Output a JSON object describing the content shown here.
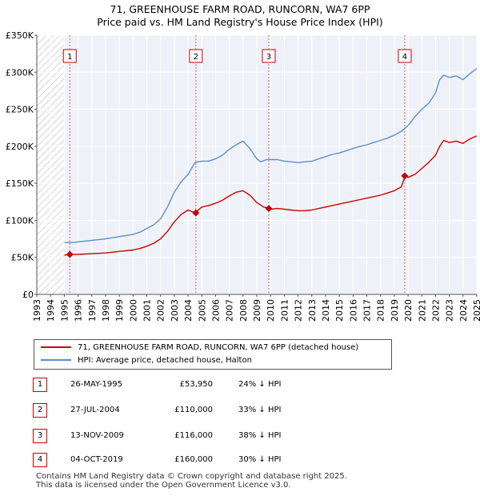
{
  "title": {
    "line1": "71, GREENHOUSE FARM ROAD, RUNCORN, WA7 6PP",
    "line2": "Price paid vs. HM Land Registry's House Price Index (HPI)"
  },
  "colors": {
    "price_paid": "#cc0000",
    "hpi": "#5b8fd0",
    "marker": "#cc0000"
  },
  "legend": {
    "price_paid": "71, GREENHOUSE FARM ROAD, RUNCORN, WA7 6PP (detached house)",
    "hpi": "HPI: Average price, detached house, Halton"
  },
  "sales": [
    {
      "num": "1",
      "date": "26-MAY-1995",
      "price": "£53,950",
      "hpi_diff": "24% ↓ HPI"
    },
    {
      "num": "2",
      "date": "27-JUL-2004",
      "price": "£110,000",
      "hpi_diff": "33% ↓ HPI"
    },
    {
      "num": "3",
      "date": "13-NOV-2009",
      "price": "£116,000",
      "hpi_diff": "38% ↓ HPI"
    },
    {
      "num": "4",
      "date": "04-OCT-2019",
      "price": "£160,000",
      "hpi_diff": "30% ↓ HPI"
    }
  ],
  "footer": {
    "line1": "Contains HM Land Registry data © Crown copyright and database right 2025.",
    "line2": "This data is licensed under the Open Government Licence v3.0."
  },
  "chart_data": {
    "type": "line",
    "xlim": [
      1993,
      2025
    ],
    "ylim": [
      0,
      350000
    ],
    "y_ticks": [
      0,
      50000,
      100000,
      150000,
      200000,
      250000,
      300000,
      350000
    ],
    "y_tick_labels": [
      "£0",
      "£50K",
      "£100K",
      "£150K",
      "£200K",
      "£250K",
      "£300K",
      "£350K"
    ],
    "x_ticks": [
      1993,
      1994,
      1995,
      1996,
      1997,
      1998,
      1999,
      2000,
      2001,
      2002,
      2003,
      2004,
      2005,
      2006,
      2007,
      2008,
      2009,
      2010,
      2011,
      2012,
      2013,
      2014,
      2015,
      2016,
      2017,
      2018,
      2019,
      2020,
      2021,
      2022,
      2023,
      2024,
      2025
    ],
    "hatched_until": 1995.0,
    "series": [
      {
        "name": "HPI: Average price, detached house, Halton",
        "color": "#5b8fd0",
        "x": [
          1995.0,
          1995.5,
          1996,
          1997,
          1998,
          1999,
          2000,
          2000.5,
          2001,
          2001.5,
          2002,
          2002.5,
          2003,
          2003.5,
          2004,
          2004.5,
          2005,
          2005.5,
          2006,
          2006.5,
          2007,
          2007.5,
          2008,
          2008.5,
          2009,
          2009.3,
          2009.7,
          2010,
          2010.5,
          2011,
          2011.5,
          2012,
          2012.5,
          2013,
          2013.5,
          2014,
          2014.5,
          2015,
          2015.5,
          2016,
          2016.5,
          2017,
          2017.5,
          2018,
          2018.5,
          2019,
          2019.5,
          2020,
          2020.5,
          2021,
          2021.5,
          2022,
          2022.3,
          2022.6,
          2023,
          2023.5,
          2024,
          2024.5,
          2025
        ],
        "values": [
          70000,
          70000,
          71000,
          73000,
          75000,
          78000,
          81000,
          84000,
          89000,
          94000,
          102000,
          118000,
          138000,
          152000,
          162000,
          178000,
          180000,
          180000,
          183000,
          188000,
          196000,
          202000,
          207000,
          197000,
          183000,
          179000,
          182000,
          182000,
          182000,
          180000,
          179000,
          178000,
          179000,
          180000,
          183000,
          186000,
          189000,
          191000,
          194000,
          197000,
          200000,
          202000,
          205000,
          208000,
          211000,
          215000,
          220000,
          228000,
          240000,
          250000,
          258000,
          272000,
          290000,
          296000,
          293000,
          295000,
          290000,
          298000,
          305000
        ]
      },
      {
        "name": "71, GREENHOUSE FARM ROAD, RUNCORN, WA7 6PP (detached house)",
        "color": "#cc0000",
        "x": [
          1995.0,
          1995.4,
          1996,
          1997,
          1998,
          1999,
          2000,
          2000.5,
          2001,
          2001.5,
          2002,
          2002.5,
          2003,
          2003.5,
          2004,
          2004.5,
          2005,
          2005.5,
          2006,
          2006.5,
          2007,
          2007.5,
          2008,
          2008.5,
          2009,
          2009.5,
          2009.9,
          2010,
          2010.5,
          2011,
          2011.5,
          2012,
          2012.5,
          2013,
          2013.5,
          2014,
          2014.5,
          2015,
          2015.5,
          2016,
          2016.5,
          2017,
          2017.5,
          2018,
          2018.5,
          2019,
          2019.5,
          2019.8,
          2020,
          2020.5,
          2021,
          2021.5,
          2022,
          2022.3,
          2022.6,
          2023,
          2023.5,
          2024,
          2024.5,
          2025
        ],
        "values": [
          53000,
          53950,
          54000,
          55000,
          56000,
          58000,
          60000,
          62000,
          65000,
          69000,
          75000,
          85000,
          98000,
          108000,
          114000,
          110000,
          118000,
          120000,
          123000,
          127000,
          133000,
          138000,
          140000,
          134000,
          124000,
          118000,
          116000,
          115000,
          116000,
          115000,
          114000,
          113000,
          113000,
          114000,
          116000,
          118000,
          120000,
          122000,
          124000,
          126000,
          128000,
          130000,
          132000,
          134000,
          137000,
          140000,
          145000,
          160000,
          158000,
          162000,
          170000,
          178000,
          188000,
          200000,
          208000,
          205000,
          207000,
          204000,
          210000,
          214000
        ]
      }
    ],
    "sales_markers": [
      {
        "label": "1",
        "x": 1995.4,
        "y": 53950
      },
      {
        "label": "2",
        "x": 2004.57,
        "y": 110000
      },
      {
        "label": "3",
        "x": 2009.87,
        "y": 116000
      },
      {
        "label": "4",
        "x": 2019.76,
        "y": 160000
      }
    ]
  }
}
